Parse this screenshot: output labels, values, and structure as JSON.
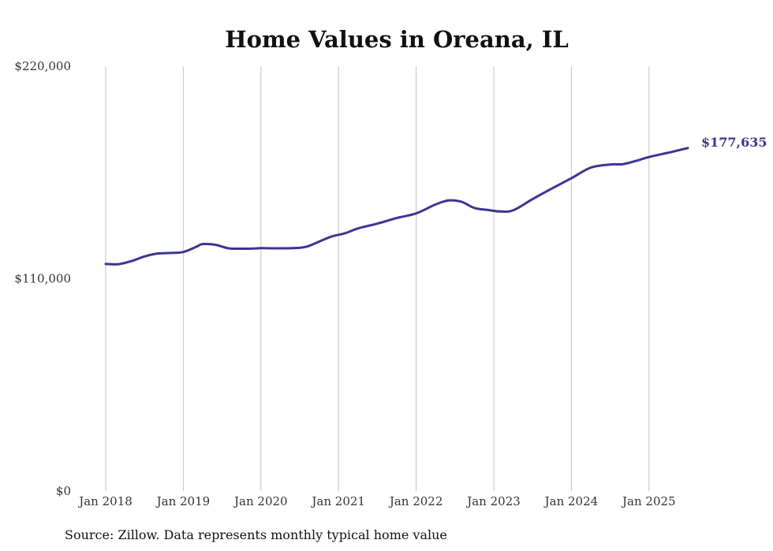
{
  "chart_data": {
    "type": "line",
    "title": "Home Values in Oreana, IL",
    "source": "Source: Zillow. Data represents monthly typical home value",
    "xlabel": "",
    "ylabel": "",
    "ylim": [
      0,
      220000
    ],
    "y_ticks": [
      0,
      110000,
      220000
    ],
    "y_tick_labels": [
      "$0",
      "$110,000",
      "$220,000"
    ],
    "x_ticks": [
      "2018-01",
      "2019-01",
      "2020-01",
      "2021-01",
      "2022-01",
      "2023-01",
      "2024-01",
      "2025-01"
    ],
    "x_tick_labels": [
      "Jan 2018",
      "Jan 2019",
      "Jan 2020",
      "Jan 2021",
      "Jan 2022",
      "Jan 2023",
      "Jan 2024",
      "Jan 2025"
    ],
    "grid": "vertical",
    "line_color": "#3b3592",
    "end_label": "$177,635",
    "series": [
      {
        "x": [
          "2018-01",
          "2018-03",
          "2018-05",
          "2018-07",
          "2018-09",
          "2018-11",
          "2019-01",
          "2019-03",
          "2019-04",
          "2019-06",
          "2019-08",
          "2019-10",
          "2019-12",
          "2020-01",
          "2020-03",
          "2020-06",
          "2020-08",
          "2020-10",
          "2020-12",
          "2021-02",
          "2021-04",
          "2021-07",
          "2021-10",
          "2022-01",
          "2022-04",
          "2022-06",
          "2022-08",
          "2022-10",
          "2022-12",
          "2023-02",
          "2023-04",
          "2023-07",
          "2023-10",
          "2024-01",
          "2024-04",
          "2024-07",
          "2024-09",
          "2024-11",
          "2025-01",
          "2025-03",
          "2025-05",
          "2025-07"
        ],
        "values": [
          117600,
          117500,
          119100,
          121500,
          123000,
          123300,
          123800,
          126500,
          127900,
          127500,
          125700,
          125500,
          125600,
          125800,
          125700,
          125800,
          126500,
          129200,
          131900,
          133500,
          136000,
          138500,
          141400,
          143800,
          148400,
          150500,
          149800,
          146600,
          145600,
          144800,
          145400,
          151200,
          156700,
          162000,
          167500,
          169100,
          169300,
          171000,
          173000,
          174500,
          176000,
          177635
        ]
      }
    ]
  }
}
